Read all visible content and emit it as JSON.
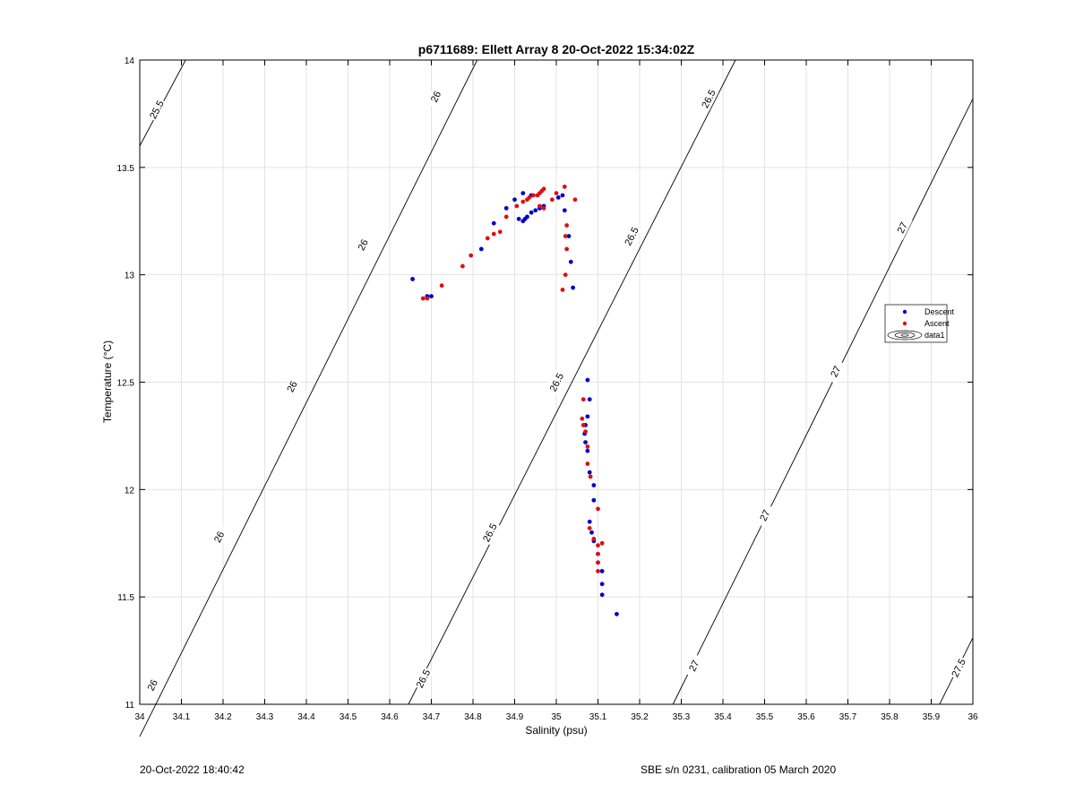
{
  "footer": {
    "timestamp": "20-Oct-2022 18:40:42",
    "instrument": "SBE s/n 0231, calibration 05 March 2020"
  },
  "colors": {
    "descent": "#0000cc",
    "ascent": "#dd1111",
    "contour": "#000000",
    "grid": "#e3e3e3"
  },
  "chart_data": {
    "type": "scatter",
    "title": "p6711689: Ellett Array 8 20-Oct-2022 15:34:02Z",
    "xlabel": "Salinity (psu)",
    "ylabel": "Temperature (°C)",
    "xlim": [
      34,
      36
    ],
    "ylim": [
      11,
      14
    ],
    "grid": true,
    "legend_position": "right",
    "xticks": [
      "34",
      "34.1",
      "34.2",
      "34.3",
      "34.4",
      "34.5",
      "34.6",
      "34.7",
      "34.8",
      "34.9",
      "35",
      "35.1",
      "35.2",
      "35.3",
      "35.4",
      "35.5",
      "35.6",
      "35.7",
      "35.8",
      "35.9",
      "36"
    ],
    "yticks": [
      "11",
      "11.5",
      "12",
      "12.5",
      "13",
      "13.5",
      "14"
    ],
    "legend": [
      "Descent",
      "Ascent",
      "data1"
    ],
    "series": [
      {
        "name": "Descent",
        "marker": "dot",
        "points": [
          [
            34.655,
            12.98
          ],
          [
            34.69,
            12.9
          ],
          [
            34.7,
            12.9
          ],
          [
            34.82,
            13.12
          ],
          [
            34.85,
            13.24
          ],
          [
            34.88,
            13.31
          ],
          [
            34.9,
            13.35
          ],
          [
            34.91,
            13.26
          ],
          [
            34.92,
            13.25
          ],
          [
            34.925,
            13.26
          ],
          [
            34.93,
            13.27
          ],
          [
            34.94,
            13.29
          ],
          [
            34.95,
            13.3
          ],
          [
            34.96,
            13.31
          ],
          [
            34.97,
            13.32
          ],
          [
            34.92,
            13.38
          ],
          [
            34.94,
            13.37
          ],
          [
            35.005,
            13.36
          ],
          [
            35.015,
            13.37
          ],
          [
            35.02,
            13.3
          ],
          [
            35.03,
            13.18
          ],
          [
            35.035,
            13.06
          ],
          [
            35.04,
            12.94
          ],
          [
            35.075,
            12.51
          ],
          [
            35.08,
            12.42
          ],
          [
            35.075,
            12.34
          ],
          [
            35.07,
            12.3
          ],
          [
            35.068,
            12.26
          ],
          [
            35.07,
            12.22
          ],
          [
            35.075,
            12.18
          ],
          [
            35.08,
            12.08
          ],
          [
            35.09,
            12.02
          ],
          [
            35.09,
            11.95
          ],
          [
            35.08,
            11.85
          ],
          [
            35.085,
            11.8
          ],
          [
            35.09,
            11.76
          ],
          [
            35.1,
            11.7
          ],
          [
            35.1,
            11.66
          ],
          [
            35.11,
            11.62
          ],
          [
            35.11,
            11.56
          ],
          [
            35.11,
            11.51
          ],
          [
            35.145,
            11.42
          ]
        ]
      },
      {
        "name": "Ascent",
        "marker": "dot",
        "points": [
          [
            34.68,
            12.89
          ],
          [
            34.69,
            12.89
          ],
          [
            34.725,
            12.95
          ],
          [
            34.775,
            13.04
          ],
          [
            34.795,
            13.09
          ],
          [
            34.835,
            13.17
          ],
          [
            34.85,
            13.19
          ],
          [
            34.865,
            13.2
          ],
          [
            34.88,
            13.27
          ],
          [
            34.905,
            13.32
          ],
          [
            34.92,
            13.34
          ],
          [
            34.93,
            13.35
          ],
          [
            34.935,
            13.36
          ],
          [
            34.945,
            13.37
          ],
          [
            34.955,
            13.37
          ],
          [
            34.96,
            13.38
          ],
          [
            34.965,
            13.39
          ],
          [
            34.97,
            13.4
          ],
          [
            34.96,
            13.32
          ],
          [
            34.97,
            13.31
          ],
          [
            34.99,
            13.35
          ],
          [
            35.0,
            13.38
          ],
          [
            35.02,
            13.41
          ],
          [
            35.045,
            13.35
          ],
          [
            35.015,
            12.93
          ],
          [
            35.022,
            13.0
          ],
          [
            35.025,
            13.12
          ],
          [
            35.022,
            13.18
          ],
          [
            35.025,
            13.23
          ],
          [
            35.065,
            12.42
          ],
          [
            35.062,
            12.33
          ],
          [
            35.065,
            12.3
          ],
          [
            35.07,
            12.27
          ],
          [
            35.075,
            12.2
          ],
          [
            35.075,
            12.12
          ],
          [
            35.082,
            12.06
          ],
          [
            35.1,
            11.91
          ],
          [
            35.08,
            11.82
          ],
          [
            35.09,
            11.77
          ],
          [
            35.1,
            11.74
          ],
          [
            35.11,
            11.75
          ],
          [
            35.1,
            11.7
          ],
          [
            35.1,
            11.66
          ],
          [
            35.1,
            11.62
          ]
        ]
      }
    ],
    "density_contours": [
      {
        "level": "25.5",
        "points": [
          [
            34.0,
            13.6
          ],
          [
            34.11,
            14.0
          ]
        ],
        "labels": [
          [
            34.04,
            13.77
          ]
        ]
      },
      {
        "level": "26",
        "points": [
          [
            34.0,
            10.85
          ],
          [
            34.81,
            14.0
          ]
        ],
        "labels": [
          [
            34.03,
            11.09
          ],
          [
            34.19,
            11.78
          ],
          [
            34.365,
            12.48
          ],
          [
            34.535,
            13.14
          ],
          [
            34.71,
            13.83
          ]
        ]
      },
      {
        "level": "26.5",
        "points": [
          [
            34.645,
            11.0
          ],
          [
            35.43,
            14.0
          ]
        ],
        "labels": [
          [
            34.68,
            11.12
          ],
          [
            34.84,
            11.8
          ],
          [
            35.0,
            12.5
          ],
          [
            35.18,
            13.18
          ],
          [
            35.365,
            13.82
          ]
        ]
      },
      {
        "level": "27",
        "points": [
          [
            35.28,
            11.0
          ],
          [
            36.0,
            13.82
          ]
        ],
        "labels": [
          [
            35.33,
            11.18
          ],
          [
            35.5,
            11.88
          ],
          [
            35.67,
            12.55
          ],
          [
            35.83,
            13.22
          ]
        ]
      },
      {
        "level": "27.5",
        "points": [
          [
            35.92,
            11.0
          ],
          [
            36.0,
            11.31
          ]
        ],
        "labels": [
          [
            35.965,
            11.17
          ]
        ]
      }
    ]
  }
}
